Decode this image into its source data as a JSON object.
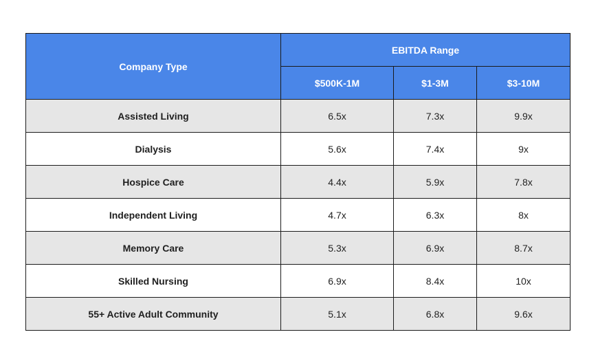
{
  "table": {
    "header": {
      "company_type": "Company Type",
      "ebitda_range": "EBITDA Range",
      "ranges": [
        "$500K-1M",
        "$1-3M",
        "$3-10M"
      ]
    },
    "rows": [
      {
        "type": "Assisted Living",
        "values": [
          "6.5x",
          "7.3x",
          "9.9x"
        ]
      },
      {
        "type": "Dialysis",
        "values": [
          "5.6x",
          "7.4x",
          "9x"
        ]
      },
      {
        "type": "Hospice Care",
        "values": [
          "4.4x",
          "5.9x",
          "7.8x"
        ]
      },
      {
        "type": "Independent Living",
        "values": [
          "4.7x",
          "6.3x",
          "8x"
        ]
      },
      {
        "type": "Memory Care",
        "values": [
          "5.3x",
          "6.9x",
          "8.7x"
        ]
      },
      {
        "type": "Skilled Nursing",
        "values": [
          "6.9x",
          "8.4x",
          "10x"
        ]
      },
      {
        "type": "55+ Active Adult Community",
        "values": [
          "5.1x",
          "6.8x",
          "9.6x"
        ]
      }
    ]
  },
  "colors": {
    "header_bg": "#4a86e8",
    "header_text": "#ffffff",
    "row_shaded": "#e6e6e6",
    "row_plain": "#ffffff",
    "border": "#1a1a1a"
  }
}
